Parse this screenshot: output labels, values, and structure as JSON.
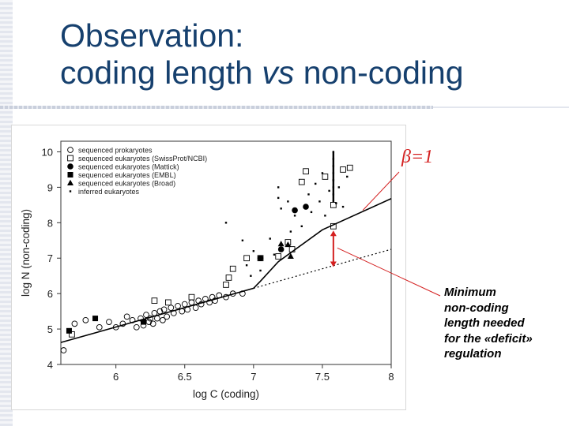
{
  "slide": {
    "title_line1": "Observation:",
    "title_line2_before": "coding length ",
    "title_line2_italic": "vs",
    "title_line2_after": " non-coding",
    "beta_label": "β=1",
    "note_lines": [
      "Minimum",
      "non-coding",
      "length needed",
      "for the «deficit»",
      "regulation"
    ]
  },
  "colors": {
    "title": "#16406e",
    "annotation": "#d42020",
    "data": "#000000"
  },
  "chart_data": {
    "type": "scatter",
    "xlabel": "log C (coding)",
    "ylabel": "log N (non-coding)",
    "xlim": [
      5.6,
      8.0
    ],
    "ylim": [
      4.0,
      10.3
    ],
    "xticks": [
      6,
      6.5,
      7,
      7.5,
      8
    ],
    "xtick_labels": [
      "6",
      "6.5",
      "7",
      "7.5",
      "8"
    ],
    "yticks": [
      4,
      5,
      6,
      7,
      8,
      9,
      10
    ],
    "ytick_labels": [
      "4",
      "5",
      "6",
      "7",
      "8",
      "9",
      "10"
    ],
    "legend_position": "top-left",
    "legend": [
      {
        "label": "sequenced prokaryotes",
        "marker": "open-circle"
      },
      {
        "label": "sequenced eukaryotes (SwissProt/NCBI)",
        "marker": "open-square"
      },
      {
        "label": "sequenced eukaryotes (Mattick)",
        "marker": "filled-circle"
      },
      {
        "label": "sequenced eukaryotes (EMBL)",
        "marker": "filled-square"
      },
      {
        "label": "sequenced eukaryotes (Broad)",
        "marker": "filled-triangle"
      },
      {
        "label": "inferred eukaryotes",
        "marker": "small-dot"
      }
    ],
    "series": [
      {
        "name": "sequenced prokaryotes",
        "marker": "open-circle",
        "points": [
          [
            5.62,
            4.4
          ],
          [
            5.7,
            5.15
          ],
          [
            5.78,
            5.25
          ],
          [
            5.88,
            5.05
          ],
          [
            5.95,
            5.2
          ],
          [
            6.0,
            5.05
          ],
          [
            6.05,
            5.15
          ],
          [
            6.08,
            5.35
          ],
          [
            6.12,
            5.25
          ],
          [
            6.15,
            5.05
          ],
          [
            6.18,
            5.3
          ],
          [
            6.2,
            5.1
          ],
          [
            6.22,
            5.4
          ],
          [
            6.24,
            5.2
          ],
          [
            6.25,
            5.3
          ],
          [
            6.27,
            5.15
          ],
          [
            6.28,
            5.45
          ],
          [
            6.3,
            5.3
          ],
          [
            6.32,
            5.5
          ],
          [
            6.34,
            5.25
          ],
          [
            6.35,
            5.55
          ],
          [
            6.37,
            5.35
          ],
          [
            6.4,
            5.6
          ],
          [
            6.42,
            5.45
          ],
          [
            6.45,
            5.65
          ],
          [
            6.48,
            5.5
          ],
          [
            6.5,
            5.7
          ],
          [
            6.52,
            5.55
          ],
          [
            6.55,
            5.75
          ],
          [
            6.58,
            5.6
          ],
          [
            6.6,
            5.8
          ],
          [
            6.62,
            5.7
          ],
          [
            6.65,
            5.85
          ],
          [
            6.68,
            5.75
          ],
          [
            6.7,
            5.9
          ],
          [
            6.72,
            5.8
          ],
          [
            6.75,
            5.95
          ],
          [
            6.8,
            5.9
          ],
          [
            6.85,
            6.0
          ],
          [
            6.92,
            6.0
          ]
        ]
      },
      {
        "name": "sequenced eukaryotes (SwissProt/NCBI)",
        "marker": "open-square",
        "points": [
          [
            5.68,
            4.85
          ],
          [
            6.28,
            5.8
          ],
          [
            6.38,
            5.75
          ],
          [
            6.55,
            5.9
          ],
          [
            6.8,
            6.25
          ],
          [
            6.82,
            6.45
          ],
          [
            6.85,
            6.7
          ],
          [
            6.95,
            7.0
          ],
          [
            7.05,
            7.0
          ],
          [
            7.18,
            7.05
          ],
          [
            7.25,
            7.45
          ],
          [
            7.28,
            7.25
          ],
          [
            7.38,
            9.45
          ],
          [
            7.52,
            9.3
          ],
          [
            7.58,
            8.5
          ],
          [
            7.58,
            7.9
          ],
          [
            7.65,
            9.5
          ],
          [
            7.7,
            9.55
          ],
          [
            7.35,
            9.15
          ]
        ]
      },
      {
        "name": "sequenced eukaryotes (Mattick)",
        "marker": "filled-circle",
        "points": [
          [
            7.05,
            7.0
          ],
          [
            7.3,
            8.35
          ],
          [
            7.38,
            8.45
          ],
          [
            7.2,
            7.25
          ]
        ]
      },
      {
        "name": "sequenced eukaryotes (EMBL)",
        "marker": "filled-square",
        "points": [
          [
            5.66,
            4.95
          ],
          [
            5.85,
            5.3
          ],
          [
            6.2,
            5.2
          ]
        ]
      },
      {
        "name": "sequenced eukaryotes (Broad)",
        "marker": "filled-triangle",
        "points": [
          [
            7.2,
            7.4
          ],
          [
            7.25,
            7.38
          ],
          [
            7.27,
            7.05
          ]
        ]
      },
      {
        "name": "inferred eukaryotes",
        "marker": "small-dot",
        "points": [
          [
            6.92,
            7.5
          ],
          [
            6.95,
            6.8
          ],
          [
            6.98,
            6.5
          ],
          [
            7.0,
            7.2
          ],
          [
            7.12,
            7.55
          ],
          [
            7.15,
            7.1
          ],
          [
            7.18,
            9.0
          ],
          [
            7.18,
            8.7
          ],
          [
            7.2,
            8.4
          ],
          [
            7.25,
            8.6
          ],
          [
            7.27,
            7.75
          ],
          [
            7.3,
            8.2
          ],
          [
            7.35,
            7.9
          ],
          [
            7.4,
            8.8
          ],
          [
            7.42,
            8.3
          ],
          [
            7.45,
            9.1
          ],
          [
            7.48,
            8.6
          ],
          [
            7.5,
            9.4
          ],
          [
            7.52,
            8.2
          ],
          [
            7.55,
            8.9
          ],
          [
            7.58,
            9.2
          ],
          [
            7.6,
            8.55
          ],
          [
            7.62,
            9.0
          ],
          [
            7.65,
            8.45
          ],
          [
            7.68,
            9.3
          ],
          [
            7.58,
            10.0
          ],
          [
            7.58,
            9.8
          ],
          [
            7.58,
            9.6
          ],
          [
            7.58,
            9.4
          ],
          [
            7.58,
            9.2
          ],
          [
            7.58,
            9.0
          ],
          [
            7.58,
            8.8
          ],
          [
            7.58,
            8.6
          ],
          [
            6.8,
            8.0
          ],
          [
            7.05,
            6.65
          ]
        ]
      }
    ],
    "fit_line_solid": [
      [
        5.6,
        4.62
      ],
      [
        7.0,
        6.15
      ],
      [
        7.05,
        6.35
      ],
      [
        7.18,
        6.9
      ],
      [
        7.5,
        7.8
      ],
      [
        8.0,
        8.68
      ]
    ],
    "fit_line_dotted": [
      [
        7.0,
        6.15
      ],
      [
        8.0,
        7.25
      ]
    ],
    "gap_arrow": {
      "x": 7.58,
      "y_top": 7.78,
      "y_bottom": 6.75
    }
  }
}
